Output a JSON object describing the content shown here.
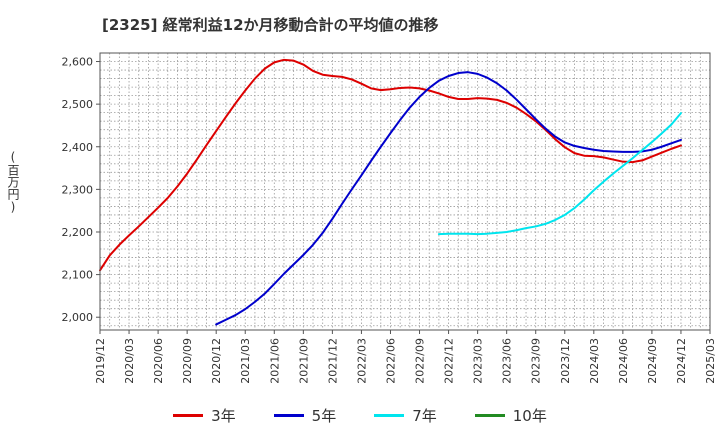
{
  "title": "[2325]  経常利益12か月移動合計の平均値の推移",
  "y_unit": "(百万円)",
  "chart_data": {
    "type": "line",
    "title": "[2325]  経常利益12か月移動合計の平均値の推移",
    "ylabel": "(百万円)",
    "xlabel": "",
    "ylim": [
      1970,
      2620
    ],
    "xlim": [
      "2019-12",
      "2025-03"
    ],
    "y_ticks": [
      2000,
      2100,
      2200,
      2300,
      2400,
      2500,
      2600
    ],
    "y_tick_labels": [
      "2,000",
      "2,100",
      "2,200",
      "2,300",
      "2,400",
      "2,500",
      "2,600"
    ],
    "x_tick_labels": [
      "2019/12",
      "2020/03",
      "2020/06",
      "2020/09",
      "2020/12",
      "2021/03",
      "2021/06",
      "2021/09",
      "2021/12",
      "2022/03",
      "2022/06",
      "2022/09",
      "2022/12",
      "2023/03",
      "2023/06",
      "2023/09",
      "2023/12",
      "2024/03",
      "2024/06",
      "2024/09",
      "2024/12",
      "2025/03"
    ],
    "grid": true,
    "legend_position": "bottom",
    "series": [
      {
        "name": "3年",
        "color": "#dd0000",
        "points": [
          [
            "2019-12",
            2110
          ],
          [
            "2020-01",
            2145
          ],
          [
            "2020-02",
            2170
          ],
          [
            "2020-03",
            2192
          ],
          [
            "2020-04",
            2213
          ],
          [
            "2020-05",
            2235
          ],
          [
            "2020-06",
            2257
          ],
          [
            "2020-07",
            2280
          ],
          [
            "2020-08",
            2307
          ],
          [
            "2020-09",
            2337
          ],
          [
            "2020-10",
            2370
          ],
          [
            "2020-11",
            2404
          ],
          [
            "2020-12",
            2437
          ],
          [
            "2021-01",
            2470
          ],
          [
            "2021-02",
            2502
          ],
          [
            "2021-03",
            2532
          ],
          [
            "2021-04",
            2560
          ],
          [
            "2021-05",
            2583
          ],
          [
            "2021-06",
            2598
          ],
          [
            "2021-07",
            2604
          ],
          [
            "2021-08",
            2602
          ],
          [
            "2021-09",
            2593
          ],
          [
            "2021-10",
            2578
          ],
          [
            "2021-11",
            2569
          ],
          [
            "2021-12",
            2566
          ],
          [
            "2022-01",
            2564
          ],
          [
            "2022-02",
            2558
          ],
          [
            "2022-03",
            2548
          ],
          [
            "2022-04",
            2537
          ],
          [
            "2022-05",
            2533
          ],
          [
            "2022-06",
            2535
          ],
          [
            "2022-07",
            2538
          ],
          [
            "2022-08",
            2539
          ],
          [
            "2022-09",
            2537
          ],
          [
            "2022-10",
            2532
          ],
          [
            "2022-11",
            2525
          ],
          [
            "2022-12",
            2517
          ],
          [
            "2023-01",
            2512
          ],
          [
            "2023-02",
            2512
          ],
          [
            "2023-03",
            2514
          ],
          [
            "2023-04",
            2513
          ],
          [
            "2023-05",
            2510
          ],
          [
            "2023-06",
            2503
          ],
          [
            "2023-07",
            2492
          ],
          [
            "2023-08",
            2477
          ],
          [
            "2023-09",
            2460
          ],
          [
            "2023-10",
            2440
          ],
          [
            "2023-11",
            2418
          ],
          [
            "2023-12",
            2399
          ],
          [
            "2024-01",
            2385
          ],
          [
            "2024-02",
            2379
          ],
          [
            "2024-03",
            2378
          ],
          [
            "2024-04",
            2375
          ],
          [
            "2024-05",
            2370
          ],
          [
            "2024-06",
            2365
          ],
          [
            "2024-07",
            2364
          ],
          [
            "2024-08",
            2368
          ],
          [
            "2024-09",
            2377
          ],
          [
            "2024-10",
            2386
          ],
          [
            "2024-11",
            2395
          ],
          [
            "2024-12",
            2403
          ]
        ]
      },
      {
        "name": "5年",
        "color": "#0000cc",
        "points": [
          [
            "2020-12",
            1983
          ],
          [
            "2021-01",
            1994
          ],
          [
            "2021-02",
            2005
          ],
          [
            "2021-03",
            2019
          ],
          [
            "2021-04",
            2036
          ],
          [
            "2021-05",
            2055
          ],
          [
            "2021-06",
            2078
          ],
          [
            "2021-07",
            2102
          ],
          [
            "2021-08",
            2124
          ],
          [
            "2021-09",
            2146
          ],
          [
            "2021-10",
            2170
          ],
          [
            "2021-11",
            2198
          ],
          [
            "2021-12",
            2231
          ],
          [
            "2022-01",
            2266
          ],
          [
            "2022-02",
            2300
          ],
          [
            "2022-03",
            2333
          ],
          [
            "2022-04",
            2367
          ],
          [
            "2022-05",
            2400
          ],
          [
            "2022-06",
            2432
          ],
          [
            "2022-07",
            2463
          ],
          [
            "2022-08",
            2492
          ],
          [
            "2022-09",
            2517
          ],
          [
            "2022-10",
            2538
          ],
          [
            "2022-11",
            2555
          ],
          [
            "2022-12",
            2566
          ],
          [
            "2023-01",
            2573
          ],
          [
            "2023-02",
            2575
          ],
          [
            "2023-03",
            2571
          ],
          [
            "2023-04",
            2562
          ],
          [
            "2023-05",
            2549
          ],
          [
            "2023-06",
            2532
          ],
          [
            "2023-07",
            2511
          ],
          [
            "2023-08",
            2488
          ],
          [
            "2023-09",
            2465
          ],
          [
            "2023-10",
            2443
          ],
          [
            "2023-11",
            2424
          ],
          [
            "2023-12",
            2410
          ],
          [
            "2024-01",
            2402
          ],
          [
            "2024-02",
            2397
          ],
          [
            "2024-03",
            2393
          ],
          [
            "2024-04",
            2390
          ],
          [
            "2024-05",
            2389
          ],
          [
            "2024-06",
            2388
          ],
          [
            "2024-07",
            2388
          ],
          [
            "2024-08",
            2389
          ],
          [
            "2024-09",
            2393
          ],
          [
            "2024-10",
            2400
          ],
          [
            "2024-11",
            2408
          ],
          [
            "2024-12",
            2416
          ]
        ]
      },
      {
        "name": "7年",
        "color": "#00e5ee",
        "points": [
          [
            "2022-11",
            2195
          ],
          [
            "2022-12",
            2196
          ],
          [
            "2023-01",
            2196
          ],
          [
            "2023-02",
            2196
          ],
          [
            "2023-03",
            2195
          ],
          [
            "2023-04",
            2196
          ],
          [
            "2023-05",
            2198
          ],
          [
            "2023-06",
            2200
          ],
          [
            "2023-07",
            2204
          ],
          [
            "2023-08",
            2209
          ],
          [
            "2023-09",
            2213
          ],
          [
            "2023-10",
            2219
          ],
          [
            "2023-11",
            2228
          ],
          [
            "2023-12",
            2240
          ],
          [
            "2024-01",
            2256
          ],
          [
            "2024-02",
            2276
          ],
          [
            "2024-03",
            2298
          ],
          [
            "2024-04",
            2318
          ],
          [
            "2024-05",
            2337
          ],
          [
            "2024-06",
            2355
          ],
          [
            "2024-07",
            2373
          ],
          [
            "2024-08",
            2392
          ],
          [
            "2024-09",
            2411
          ],
          [
            "2024-10",
            2431
          ],
          [
            "2024-11",
            2452
          ],
          [
            "2024-12",
            2479
          ]
        ]
      },
      {
        "name": "10年",
        "color": "#228b22",
        "points": []
      }
    ]
  }
}
